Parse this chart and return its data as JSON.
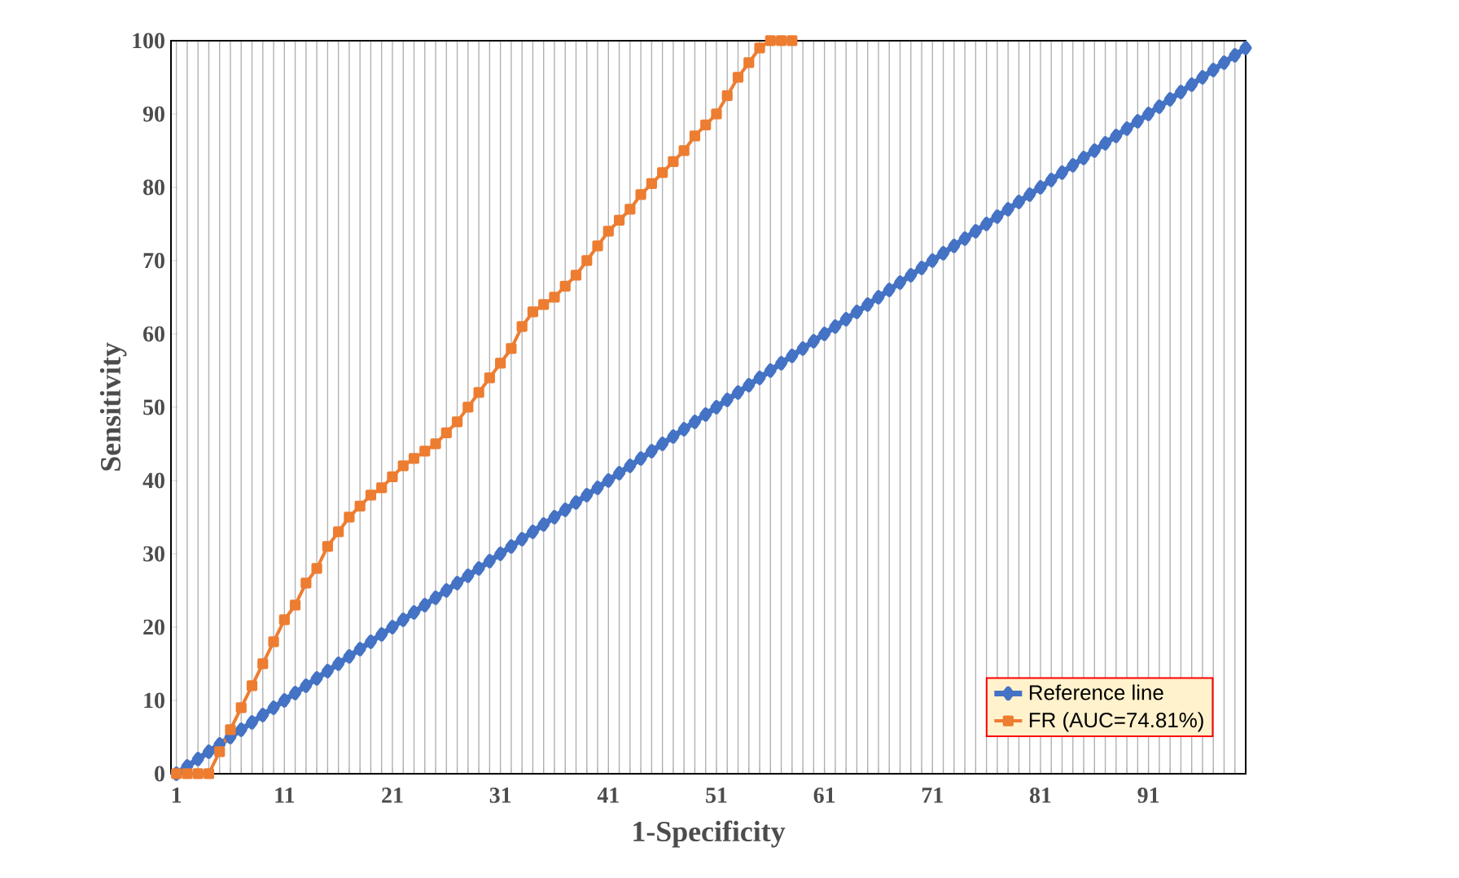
{
  "chart_data": {
    "type": "line",
    "xlabel": "1-Specificity",
    "ylabel": "Sensitivity",
    "categories": [
      "1",
      null,
      null,
      null,
      null,
      null,
      null,
      null,
      null,
      null,
      "11",
      null,
      null,
      null,
      null,
      null,
      null,
      null,
      null,
      null,
      "21",
      null,
      null,
      null,
      null,
      null,
      null,
      null,
      null,
      null,
      "31",
      null,
      null,
      null,
      null,
      null,
      null,
      null,
      null,
      null,
      "41",
      null,
      null,
      null,
      null,
      null,
      null,
      null,
      null,
      null,
      "51",
      null,
      null,
      null,
      null,
      null,
      null,
      null,
      null,
      null,
      "61",
      null,
      null,
      null,
      null,
      null,
      null,
      null,
      null,
      null,
      "71",
      null,
      null,
      null,
      null,
      null,
      null,
      null,
      null,
      null,
      "81",
      null,
      null,
      null,
      null,
      null,
      null,
      null,
      null,
      null,
      "91",
      null,
      null,
      null,
      null,
      null,
      null,
      null,
      null,
      null
    ],
    "series": [
      {
        "name": "Reference line",
        "color": "#4472c4",
        "marker": "diamond",
        "values": [
          0,
          1,
          2,
          3,
          4,
          5,
          6,
          7,
          8,
          9,
          10,
          11,
          12,
          13,
          14,
          15,
          16,
          17,
          18,
          19,
          20,
          21,
          22,
          23,
          24,
          25,
          26,
          27,
          28,
          29,
          30,
          31,
          32,
          33,
          34,
          35,
          36,
          37,
          38,
          39,
          40,
          41,
          42,
          43,
          44,
          45,
          46,
          47,
          48,
          49,
          50,
          51,
          52,
          53,
          54,
          55,
          56,
          57,
          58,
          59,
          60,
          61,
          62,
          63,
          64,
          65,
          66,
          67,
          68,
          69,
          70,
          71,
          72,
          73,
          74,
          75,
          76,
          77,
          78,
          79,
          80,
          81,
          82,
          83,
          84,
          85,
          86,
          87,
          88,
          89,
          90,
          91,
          92,
          93,
          94,
          95,
          96,
          97,
          98,
          99
        ]
      },
      {
        "name": "FR (AUC=74.81%)",
        "color": "#ed7d31",
        "marker": "square",
        "values": [
          0,
          0,
          0,
          0,
          3,
          6,
          9,
          12,
          15,
          18,
          21,
          23,
          26,
          28,
          31,
          33,
          35,
          36.5,
          38,
          39,
          40.5,
          42,
          43,
          44,
          45,
          46.5,
          48,
          50,
          52,
          54,
          56,
          58,
          61,
          63,
          64,
          65,
          66.5,
          68,
          70,
          72,
          74,
          75.5,
          77,
          79,
          80.5,
          82,
          83.5,
          85,
          87,
          88.5,
          90,
          92.5,
          95,
          97,
          99,
          100,
          100,
          100,
          null,
          null,
          null,
          null,
          null,
          null,
          null,
          null,
          null,
          null,
          null,
          null,
          null,
          null,
          null,
          null,
          null,
          null,
          null,
          null,
          null,
          null,
          null,
          null,
          null,
          null,
          null,
          null,
          null,
          null,
          null,
          null,
          null,
          null,
          null,
          null,
          null,
          null,
          null,
          null,
          null,
          null
        ]
      }
    ],
    "ylim": [
      0,
      100
    ],
    "yticks": [
      0,
      10,
      20,
      30,
      40,
      50,
      60,
      70,
      80,
      90,
      100
    ],
    "grid": "x",
    "legend": "bottom right"
  }
}
